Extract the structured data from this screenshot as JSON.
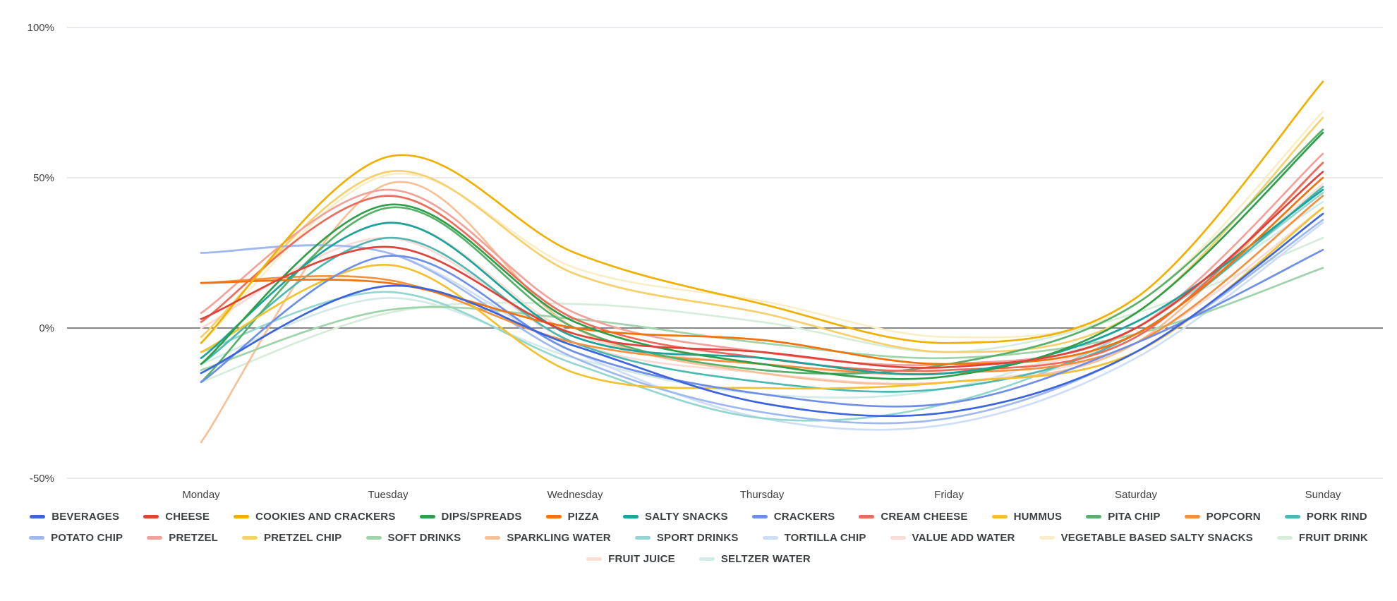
{
  "chart_data": {
    "type": "line",
    "x": [
      "Monday",
      "Tuesday",
      "Wednesday",
      "Thursday",
      "Friday",
      "Saturday",
      "Sunday"
    ],
    "ylim": [
      -50,
      100
    ],
    "y_ticks": [
      {
        "label": "100%",
        "value": 100
      },
      {
        "label": "50%",
        "value": 50
      },
      {
        "label": "0%",
        "value": 0
      },
      {
        "label": "-50%",
        "value": -50
      }
    ],
    "grid": true,
    "legend_position": "bottom",
    "baseline_value": 0,
    "title": "",
    "xlabel": "",
    "ylabel": "",
    "series": [
      {
        "name": "BEVERAGES",
        "color": "#3c64dc",
        "values": [
          -15,
          14,
          -6,
          -25,
          -28,
          -8,
          38
        ]
      },
      {
        "name": "CHEESE",
        "color": "#df4238",
        "values": [
          3,
          27,
          -2,
          -8,
          -13,
          0,
          52
        ]
      },
      {
        "name": "COOKIES AND CRACKERS",
        "color": "#efb000",
        "values": [
          -5,
          57,
          25,
          8,
          -5,
          10,
          82
        ]
      },
      {
        "name": "DIPS/SPREADS",
        "color": "#2f9e49",
        "values": [
          -12,
          41,
          2,
          -12,
          -16,
          5,
          65
        ]
      },
      {
        "name": "PIZZA",
        "color": "#f2720c",
        "values": [
          15,
          15,
          0,
          -4,
          -12,
          -2,
          50
        ]
      },
      {
        "name": "SALTY SNACKS",
        "color": "#1ba39c",
        "values": [
          -10,
          35,
          -3,
          -10,
          -15,
          2,
          46
        ]
      },
      {
        "name": "CRACKERS",
        "color": "#6e8fe8",
        "values": [
          -18,
          24,
          -8,
          -22,
          -25,
          -5,
          26
        ]
      },
      {
        "name": "CREAM CHEESE",
        "color": "#ee6a5b",
        "values": [
          2,
          44,
          3,
          -10,
          -14,
          -3,
          55
        ]
      },
      {
        "name": "HUMMUS",
        "color": "#f2c12e",
        "values": [
          -8,
          21,
          -15,
          -20,
          -18,
          -8,
          40
        ]
      },
      {
        "name": "PITA CHIP",
        "color": "#57b06b",
        "values": [
          -18,
          40,
          0,
          -14,
          -12,
          8,
          66
        ]
      },
      {
        "name": "POPCORN",
        "color": "#f5913e",
        "values": [
          15,
          16,
          -5,
          -12,
          -15,
          -5,
          44
        ]
      },
      {
        "name": "PORK RIND",
        "color": "#4db8b1",
        "values": [
          -12,
          30,
          -5,
          -18,
          -20,
          -2,
          47
        ]
      },
      {
        "name": "POTATO CHIP",
        "color": "#9fb9f0",
        "values": [
          25,
          25,
          -10,
          -28,
          -30,
          -8,
          36
        ]
      },
      {
        "name": "PRETZEL",
        "color": "#f2a29b",
        "values": [
          5,
          46,
          5,
          -8,
          -12,
          0,
          58
        ]
      },
      {
        "name": "PRETZEL CHIP",
        "color": "#f6d06d",
        "values": [
          -3,
          52,
          18,
          5,
          -8,
          5,
          70
        ]
      },
      {
        "name": "SOFT DRINKS",
        "color": "#9fd3aa",
        "values": [
          -14,
          6,
          3,
          -5,
          -10,
          -2,
          20
        ]
      },
      {
        "name": "SPARKLING WATER",
        "color": "#f7c096",
        "values": [
          -38,
          48,
          0,
          -15,
          -18,
          -5,
          55
        ]
      },
      {
        "name": "SPORT DRINKS",
        "color": "#94d6d0",
        "values": [
          -8,
          12,
          -12,
          -30,
          -25,
          0,
          45
        ]
      },
      {
        "name": "TORTILLA CHIP",
        "color": "#cfdef7",
        "values": [
          25,
          25,
          -8,
          -30,
          -32,
          -10,
          35
        ]
      },
      {
        "name": "VALUE ADD WATER",
        "color": "#fadad6",
        "values": [
          0,
          30,
          -5,
          -15,
          -18,
          -5,
          40
        ]
      },
      {
        "name": "VEGETABLE BASED SALTY SNACKS",
        "color": "#faeec8",
        "values": [
          -5,
          51,
          20,
          9,
          -3,
          8,
          72
        ]
      },
      {
        "name": "FRUIT DRINK",
        "color": "#d6eddb",
        "values": [
          -18,
          5,
          8,
          2,
          -8,
          5,
          30
        ]
      },
      {
        "name": "FRUIT JUICE",
        "color": "#fbdfd2",
        "values": [
          -10,
          35,
          -2,
          -12,
          -15,
          -2,
          48
        ]
      },
      {
        "name": "SELTZER WATER",
        "color": "#d2ebe8",
        "values": [
          -12,
          10,
          -10,
          -22,
          -20,
          2,
          42
        ]
      }
    ]
  },
  "colors": {
    "background": "#ffffff",
    "grid": "#dadce0",
    "baseline": "#616161",
    "axis_text": "#424242",
    "legend_text": "#3c4043"
  }
}
